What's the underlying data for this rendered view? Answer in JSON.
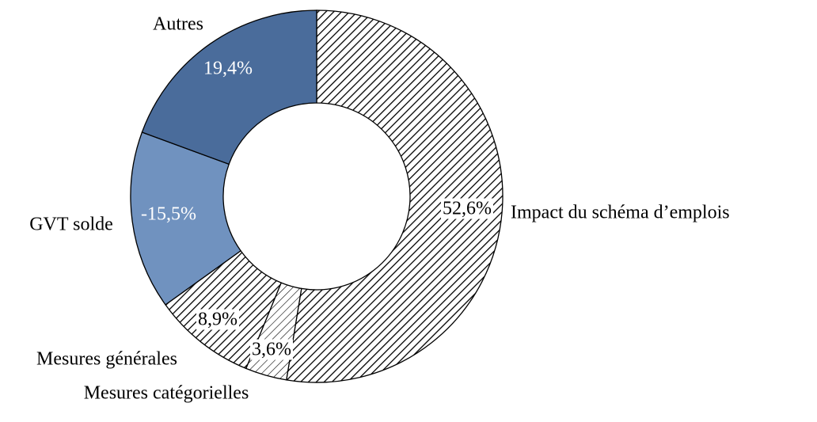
{
  "chart_data": {
    "type": "donut",
    "categories": [
      "Impact du schéma d’emplois",
      "Mesures catégorielles",
      "Mesures générales",
      "GVT solde",
      "Autres"
    ],
    "values": [
      52.6,
      3.6,
      8.9,
      -15.5,
      19.4
    ],
    "value_labels": [
      "52,6%",
      "3,6%",
      "8,9%",
      "-15,5%",
      "19,4%"
    ],
    "colors": [
      "#000000",
      "#000000",
      "#000000",
      "#7092bf",
      "#4a6c9b"
    ],
    "hatched": [
      true,
      true,
      true,
      false,
      false
    ]
  }
}
